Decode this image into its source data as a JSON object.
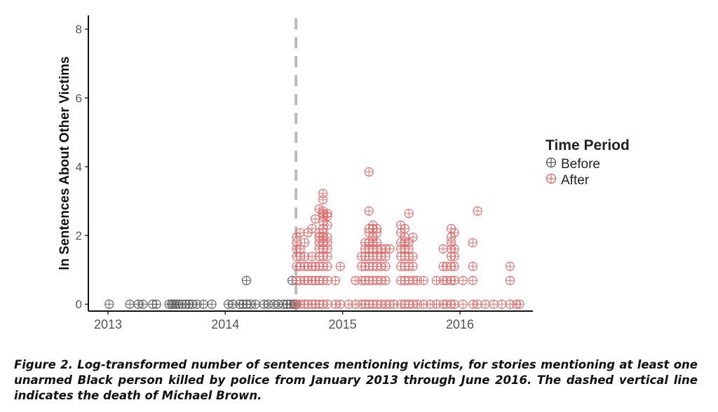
{
  "chart_data": {
    "type": "scatter",
    "ylabel": "ln Sentences About Other Victims",
    "xlabel": "",
    "xlim": [
      "2012-11-01",
      "2016-08-15"
    ],
    "ylim": [
      -0.2,
      8.4
    ],
    "x_ticks": [
      "2013",
      "2014",
      "2015",
      "2016"
    ],
    "y_ticks": [
      "0",
      "2",
      "4",
      "6",
      "8"
    ],
    "grid": false,
    "legend_title": "Time Period",
    "legend_position": "right",
    "event_line": {
      "date": "2014-08-09",
      "style": "dashed",
      "color": "#bbbbbb"
    },
    "series": [
      {
        "name": "Before",
        "color": "#555555",
        "points": [
          [
            "2013-01-05",
            0
          ],
          [
            "2013-03-10",
            0
          ],
          [
            "2013-04-05",
            0
          ],
          [
            "2013-04-20",
            0
          ],
          [
            "2013-05-20",
            0
          ],
          [
            "2013-06-01",
            0
          ],
          [
            "2013-07-10",
            0
          ],
          [
            "2013-07-18",
            0
          ],
          [
            "2013-07-25",
            0
          ],
          [
            "2013-08-02",
            0
          ],
          [
            "2013-08-10",
            0
          ],
          [
            "2013-08-20",
            0
          ],
          [
            "2013-09-01",
            0
          ],
          [
            "2013-09-10",
            0
          ],
          [
            "2013-09-20",
            0
          ],
          [
            "2013-10-05",
            0
          ],
          [
            "2013-10-25",
            0
          ],
          [
            "2013-11-20",
            0
          ],
          [
            "2014-01-10",
            0
          ],
          [
            "2014-01-25",
            0
          ],
          [
            "2014-02-15",
            0
          ],
          [
            "2014-02-25",
            0
          ],
          [
            "2014-03-08",
            0
          ],
          [
            "2014-03-08",
            0.69
          ],
          [
            "2014-03-20",
            0
          ],
          [
            "2014-04-05",
            0
          ],
          [
            "2014-05-01",
            0
          ],
          [
            "2014-05-15",
            0
          ],
          [
            "2014-06-01",
            0
          ],
          [
            "2014-06-15",
            0
          ],
          [
            "2014-07-01",
            0
          ],
          [
            "2014-07-12",
            0
          ],
          [
            "2014-07-22",
            0
          ],
          [
            "2014-07-28",
            0.69
          ],
          [
            "2014-08-02",
            0
          ],
          [
            "2014-08-07",
            0
          ]
        ]
      },
      {
        "name": "After",
        "color": "#e06666",
        "points": [
          [
            "2014-08-11",
            0
          ],
          [
            "2014-08-11",
            0.69
          ],
          [
            "2014-08-11",
            1.1
          ],
          [
            "2014-08-11",
            1.39
          ],
          [
            "2014-08-11",
            1.61
          ],
          [
            "2014-08-11",
            1.79
          ],
          [
            "2014-08-11",
            1.95
          ],
          [
            "2014-08-22",
            0
          ],
          [
            "2014-08-22",
            0.69
          ],
          [
            "2014-08-22",
            1.1
          ],
          [
            "2014-08-22",
            1.39
          ],
          [
            "2014-08-22",
            1.61
          ],
          [
            "2014-08-22",
            2.08
          ],
          [
            "2014-09-05",
            0
          ],
          [
            "2014-09-05",
            0.69
          ],
          [
            "2014-09-05",
            1.1
          ],
          [
            "2014-09-05",
            1.39
          ],
          [
            "2014-09-05",
            1.79
          ],
          [
            "2014-09-15",
            0
          ],
          [
            "2014-09-15",
            0.69
          ],
          [
            "2014-09-15",
            1.1
          ],
          [
            "2014-09-15",
            2.08
          ],
          [
            "2014-09-28",
            0
          ],
          [
            "2014-09-28",
            0.69
          ],
          [
            "2014-09-28",
            1.1
          ],
          [
            "2014-09-28",
            1.39
          ],
          [
            "2014-09-28",
            2.2
          ],
          [
            "2014-10-08",
            0
          ],
          [
            "2014-10-08",
            0.69
          ],
          [
            "2014-10-08",
            1.1
          ],
          [
            "2014-10-08",
            2.48
          ],
          [
            "2014-10-20",
            0
          ],
          [
            "2014-10-20",
            0.69
          ],
          [
            "2014-10-20",
            1.1
          ],
          [
            "2014-10-20",
            1.39
          ],
          [
            "2014-10-20",
            1.61
          ],
          [
            "2014-10-20",
            1.79
          ],
          [
            "2014-10-20",
            1.95
          ],
          [
            "2014-10-20",
            2.08
          ],
          [
            "2014-10-20",
            2.77
          ],
          [
            "2014-11-01",
            0
          ],
          [
            "2014-11-01",
            0.69
          ],
          [
            "2014-11-01",
            1.1
          ],
          [
            "2014-11-01",
            1.39
          ],
          [
            "2014-11-01",
            1.61
          ],
          [
            "2014-11-01",
            1.79
          ],
          [
            "2014-11-01",
            1.95
          ],
          [
            "2014-11-01",
            2.08
          ],
          [
            "2014-11-01",
            2.2
          ],
          [
            "2014-11-01",
            2.4
          ],
          [
            "2014-11-01",
            2.56
          ],
          [
            "2014-11-01",
            2.64
          ],
          [
            "2014-11-01",
            2.71
          ],
          [
            "2014-11-01",
            3.04
          ],
          [
            "2014-11-01",
            3.22
          ],
          [
            "2014-11-15",
            0
          ],
          [
            "2014-11-15",
            0.69
          ],
          [
            "2014-11-15",
            1.1
          ],
          [
            "2014-11-15",
            1.39
          ],
          [
            "2014-11-15",
            1.61
          ],
          [
            "2014-11-15",
            1.79
          ],
          [
            "2014-11-15",
            1.95
          ],
          [
            "2014-11-15",
            2.3
          ],
          [
            "2014-11-15",
            2.56
          ],
          [
            "2014-11-15",
            2.64
          ],
          [
            "2014-12-10",
            0
          ],
          [
            "2014-12-10",
            0.69
          ],
          [
            "2014-12-25",
            0
          ],
          [
            "2014-12-25",
            1.1
          ],
          [
            "2015-01-20",
            0
          ],
          [
            "2015-02-10",
            0
          ],
          [
            "2015-02-10",
            0.69
          ],
          [
            "2015-03-01",
            0
          ],
          [
            "2015-03-01",
            0.69
          ],
          [
            "2015-03-01",
            1.1
          ],
          [
            "2015-03-01",
            1.39
          ],
          [
            "2015-03-12",
            0
          ],
          [
            "2015-03-12",
            0.69
          ],
          [
            "2015-03-12",
            1.1
          ],
          [
            "2015-03-12",
            1.39
          ],
          [
            "2015-03-12",
            1.61
          ],
          [
            "2015-03-12",
            1.79
          ],
          [
            "2015-03-24",
            0
          ],
          [
            "2015-03-24",
            0.69
          ],
          [
            "2015-03-24",
            1.1
          ],
          [
            "2015-03-24",
            1.39
          ],
          [
            "2015-03-24",
            1.61
          ],
          [
            "2015-03-24",
            1.79
          ],
          [
            "2015-03-24",
            2.08
          ],
          [
            "2015-03-24",
            2.2
          ],
          [
            "2015-03-24",
            2.71
          ],
          [
            "2015-03-24",
            3.85
          ],
          [
            "2015-04-05",
            0
          ],
          [
            "2015-04-05",
            0.69
          ],
          [
            "2015-04-05",
            1.1
          ],
          [
            "2015-04-05",
            1.39
          ],
          [
            "2015-04-05",
            1.61
          ],
          [
            "2015-04-05",
            1.79
          ],
          [
            "2015-04-05",
            1.95
          ],
          [
            "2015-04-05",
            2.2
          ],
          [
            "2015-04-05",
            2.3
          ],
          [
            "2015-04-18",
            0
          ],
          [
            "2015-04-18",
            0.69
          ],
          [
            "2015-04-18",
            1.1
          ],
          [
            "2015-04-18",
            1.39
          ],
          [
            "2015-04-18",
            1.61
          ],
          [
            "2015-04-18",
            1.79
          ],
          [
            "2015-04-18",
            2.08
          ],
          [
            "2015-04-18",
            2.2
          ],
          [
            "2015-05-01",
            0
          ],
          [
            "2015-05-01",
            0.69
          ],
          [
            "2015-05-01",
            1.1
          ],
          [
            "2015-05-01",
            1.39
          ],
          [
            "2015-05-01",
            1.61
          ],
          [
            "2015-05-15",
            0
          ],
          [
            "2015-05-15",
            0.69
          ],
          [
            "2015-05-15",
            1.1
          ],
          [
            "2015-05-15",
            1.39
          ],
          [
            "2015-05-15",
            1.61
          ],
          [
            "2015-05-28",
            0
          ],
          [
            "2015-05-28",
            1.61
          ],
          [
            "2015-06-10",
            0
          ],
          [
            "2015-07-01",
            0
          ],
          [
            "2015-07-01",
            0.69
          ],
          [
            "2015-07-01",
            1.1
          ],
          [
            "2015-07-01",
            1.39
          ],
          [
            "2015-07-01",
            1.61
          ],
          [
            "2015-07-01",
            1.79
          ],
          [
            "2015-07-01",
            2.08
          ],
          [
            "2015-07-01",
            2.3
          ],
          [
            "2015-07-14",
            0
          ],
          [
            "2015-07-14",
            0.69
          ],
          [
            "2015-07-14",
            1.1
          ],
          [
            "2015-07-14",
            1.39
          ],
          [
            "2015-07-14",
            1.61
          ],
          [
            "2015-07-14",
            1.79
          ],
          [
            "2015-07-14",
            1.95
          ],
          [
            "2015-07-14",
            2.2
          ],
          [
            "2015-07-26",
            0
          ],
          [
            "2015-07-26",
            0.69
          ],
          [
            "2015-07-26",
            1.1
          ],
          [
            "2015-07-26",
            1.39
          ],
          [
            "2015-07-26",
            1.61
          ],
          [
            "2015-07-26",
            1.79
          ],
          [
            "2015-07-26",
            2.64
          ],
          [
            "2015-08-08",
            0
          ],
          [
            "2015-08-08",
            0.69
          ],
          [
            "2015-08-08",
            1.1
          ],
          [
            "2015-08-08",
            1.39
          ],
          [
            "2015-08-08",
            1.95
          ],
          [
            "2015-08-22",
            0
          ],
          [
            "2015-08-22",
            0.69
          ],
          [
            "2015-09-10",
            0
          ],
          [
            "2015-09-10",
            0.69
          ],
          [
            "2015-10-01",
            0
          ],
          [
            "2015-10-20",
            0
          ],
          [
            "2015-10-20",
            0.69
          ],
          [
            "2015-11-10",
            0
          ],
          [
            "2015-11-10",
            0.69
          ],
          [
            "2015-11-10",
            1.1
          ],
          [
            "2015-11-10",
            1.61
          ],
          [
            "2015-11-20",
            0
          ],
          [
            "2015-11-20",
            0.69
          ],
          [
            "2015-11-20",
            1.1
          ],
          [
            "2015-12-05",
            0
          ],
          [
            "2015-12-05",
            0.69
          ],
          [
            "2015-12-05",
            1.1
          ],
          [
            "2015-12-05",
            1.39
          ],
          [
            "2015-12-05",
            1.61
          ],
          [
            "2015-12-05",
            1.79
          ],
          [
            "2015-12-05",
            1.95
          ],
          [
            "2015-12-05",
            2.2
          ],
          [
            "2015-12-15",
            0
          ],
          [
            "2015-12-15",
            0.69
          ],
          [
            "2015-12-15",
            1.1
          ],
          [
            "2015-12-15",
            1.39
          ],
          [
            "2015-12-15",
            1.61
          ],
          [
            "2015-12-15",
            2.08
          ],
          [
            "2016-01-10",
            0
          ],
          [
            "2016-01-10",
            0.69
          ],
          [
            "2016-02-10",
            0
          ],
          [
            "2016-02-10",
            0.69
          ],
          [
            "2016-02-10",
            1.1
          ],
          [
            "2016-02-10",
            1.79
          ],
          [
            "2016-02-25",
            0
          ],
          [
            "2016-02-25",
            2.71
          ],
          [
            "2016-03-20",
            0
          ],
          [
            "2016-04-15",
            0
          ],
          [
            "2016-05-10",
            0
          ],
          [
            "2016-06-05",
            0
          ],
          [
            "2016-06-05",
            0.69
          ],
          [
            "2016-06-05",
            1.1
          ],
          [
            "2016-06-25",
            0
          ],
          [
            "2016-07-05",
            0
          ]
        ]
      }
    ]
  },
  "legend": {
    "title": "Time Period",
    "items": [
      {
        "label": "Before",
        "color": "#555555"
      },
      {
        "label": "After",
        "color": "#e06666"
      }
    ]
  },
  "caption": "Figure 2. Log-transformed number of sentences mentioning victims, for stories mentioning at least one unarmed Black person killed by police from January 2013 through June 2016. The dashed vertical line indicates the death of Michael Brown."
}
